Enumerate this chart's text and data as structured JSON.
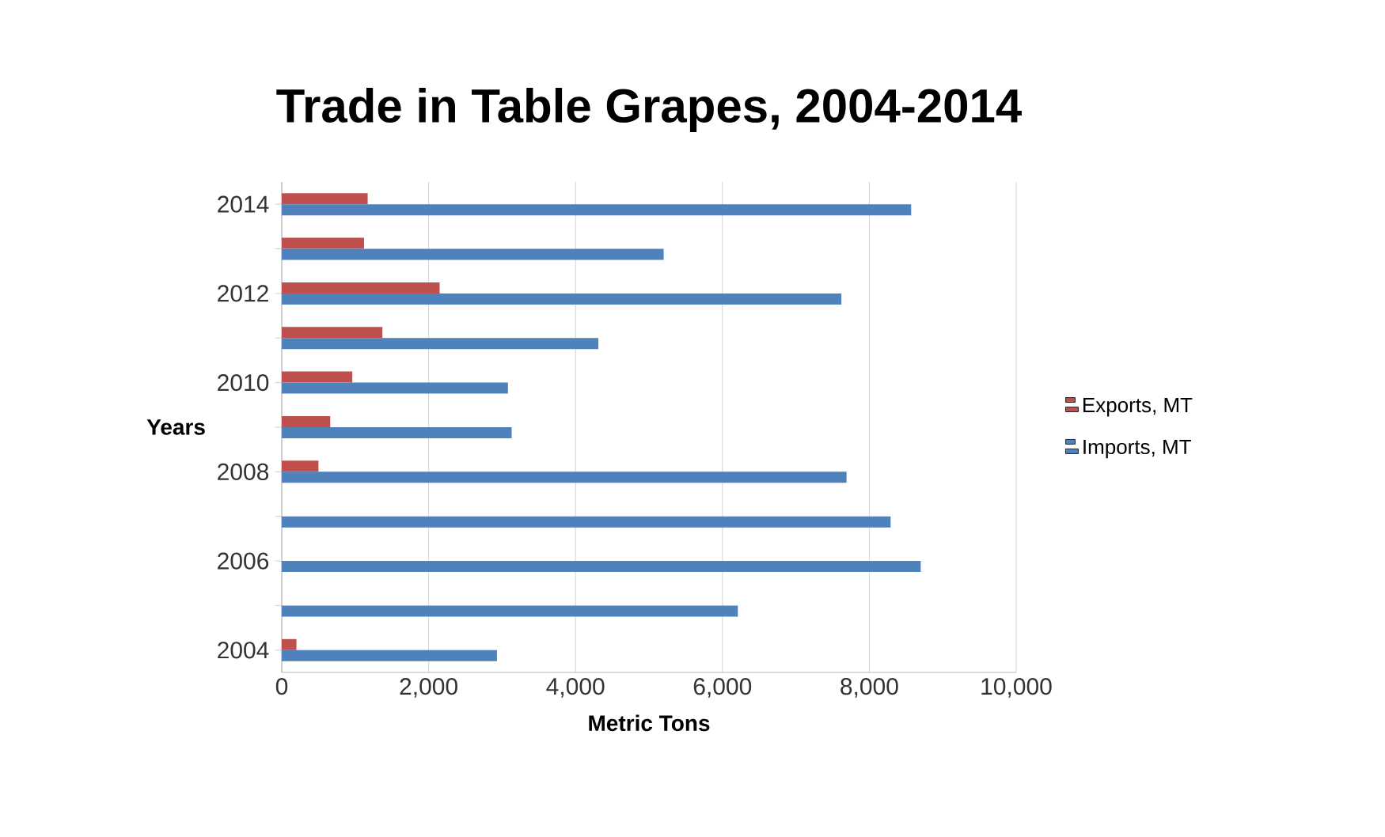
{
  "chart_data": {
    "type": "bar",
    "orientation": "horizontal",
    "title": "Trade in Table Grapes, 2004-2014",
    "xlabel": "Metric Tons",
    "ylabel": "Years",
    "categories": [
      "2014",
      null,
      "2012",
      null,
      "2010",
      null,
      "2008",
      null,
      "2006",
      null,
      "2004"
    ],
    "series": [
      {
        "name": "Exports, MT",
        "color": "#c0504d",
        "values": [
          1170,
          1120,
          2150,
          1370,
          960,
          660,
          500,
          0,
          0,
          0,
          200
        ]
      },
      {
        "name": "Imports, MT",
        "color": "#4f81bd",
        "values": [
          8570,
          5200,
          7620,
          4310,
          3080,
          3130,
          7690,
          8290,
          8700,
          6210,
          2930
        ]
      }
    ],
    "xlim": [
      0,
      10000
    ],
    "xticks": [
      0,
      {
        "value": 2000,
        "label": "2,000"
      },
      {
        "value": 4000,
        "label": "4,000"
      },
      {
        "value": 6000,
        "label": "6,000"
      },
      {
        "value": 8000,
        "label": "8,000"
      },
      {
        "value": 10000,
        "label": "10,000"
      }
    ],
    "grid": "x",
    "legend": "right"
  }
}
